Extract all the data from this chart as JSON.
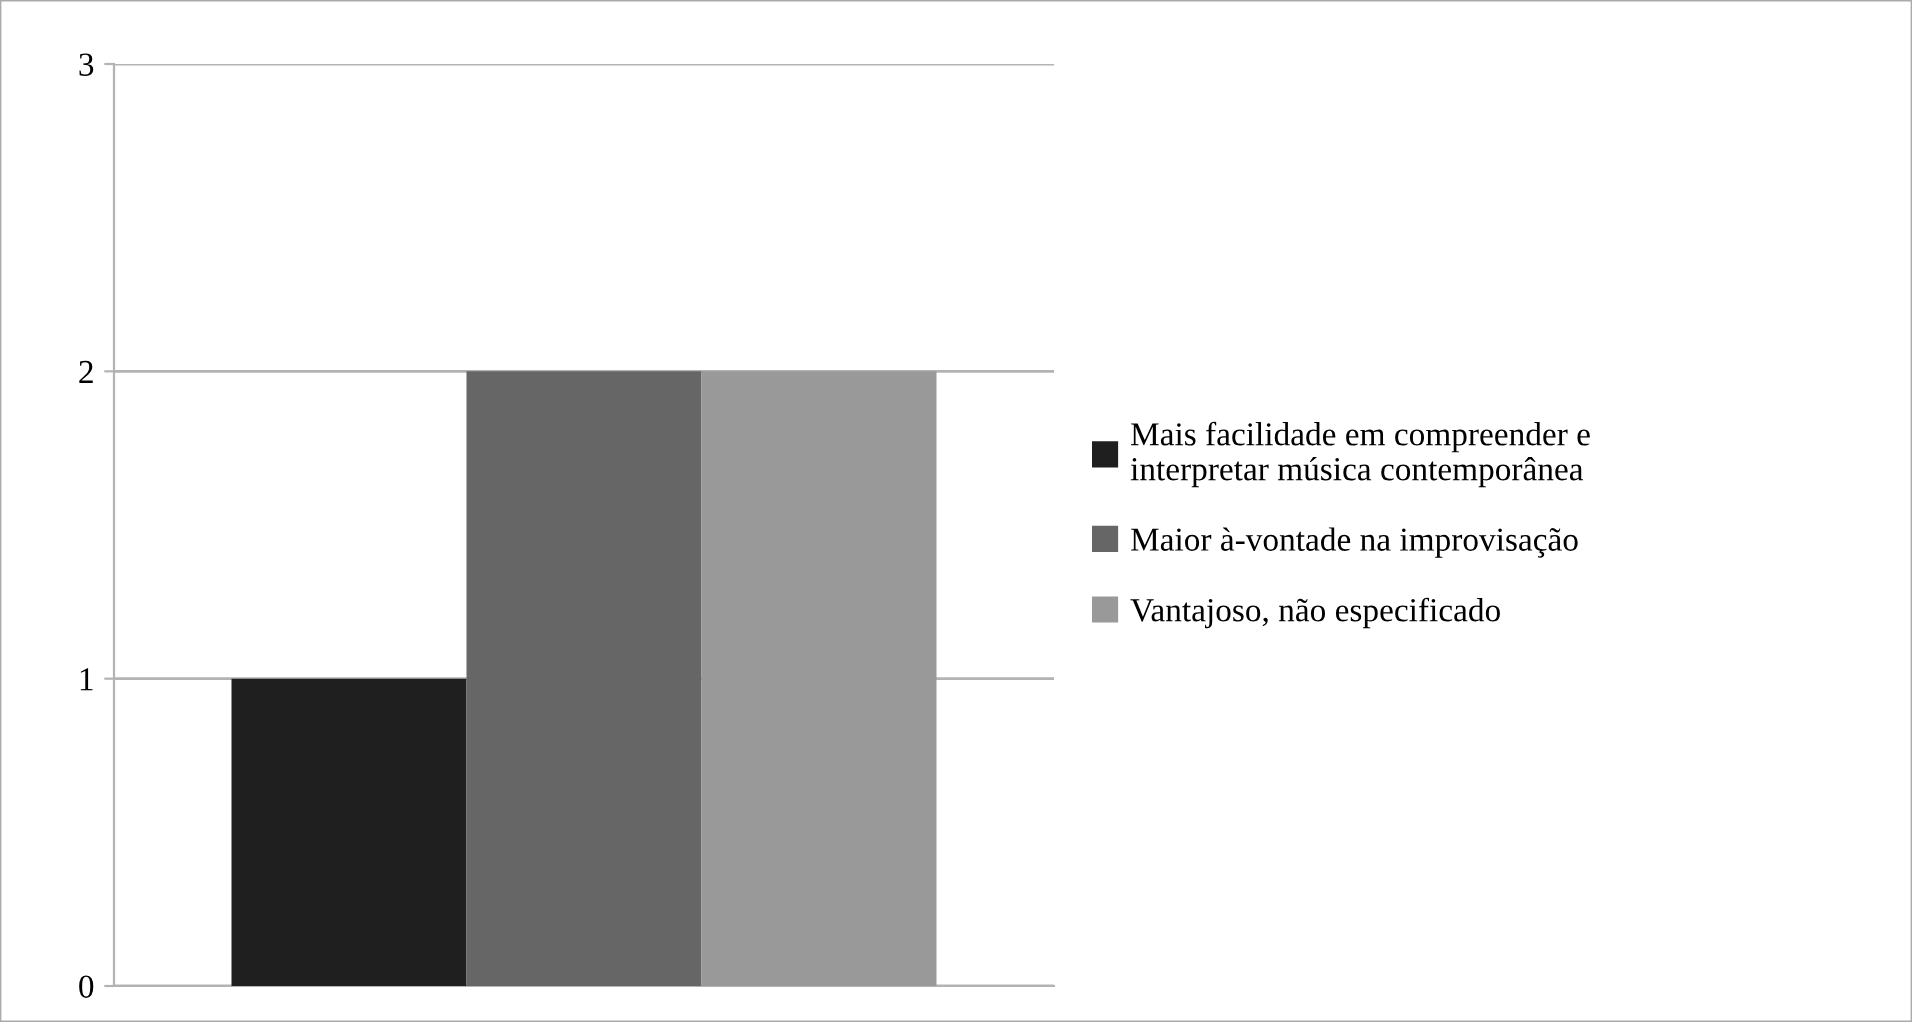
{
  "chart_data": {
    "type": "bar",
    "categories": [
      null
    ],
    "series": [
      {
        "name": "Mais facilidade em compreender e\ninterpretar música contemporânea",
        "color": "#1f1f1f",
        "values": [
          1
        ]
      },
      {
        "name": "Maior à-vontade na improvisação",
        "color": "#666666",
        "values": [
          2
        ]
      },
      {
        "name": "Vantajoso, não especificado",
        "color": "#999999",
        "values": [
          2
        ]
      }
    ],
    "ylim": [
      0,
      3
    ],
    "yticks": [
      0,
      1,
      2,
      3
    ],
    "grid": "y",
    "legend": "right"
  }
}
